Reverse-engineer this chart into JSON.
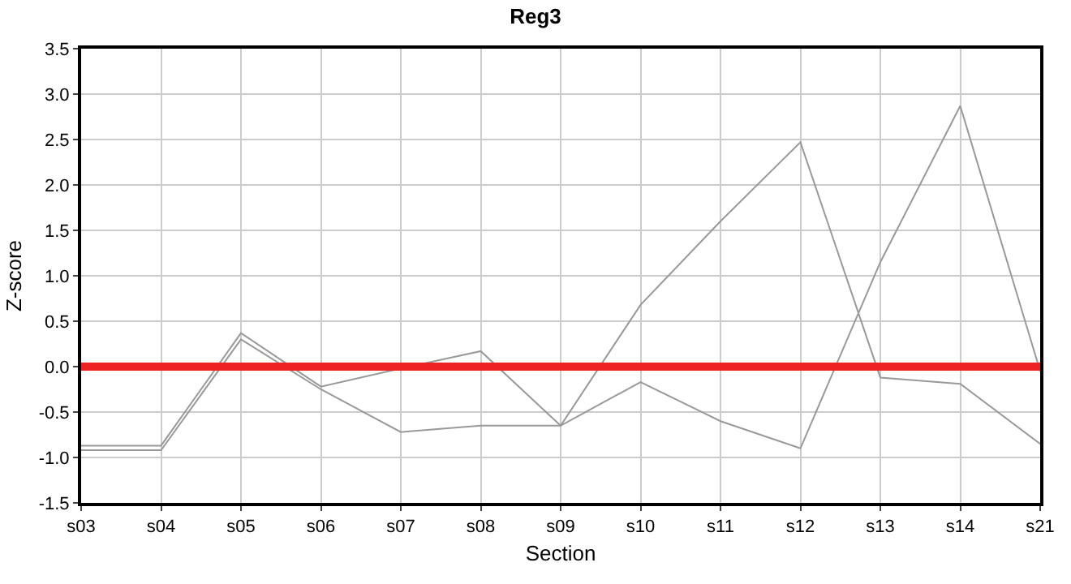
{
  "chart_data": {
    "type": "line",
    "title": "Reg3",
    "xlabel": "Section",
    "ylabel": "Z-score",
    "categories": [
      "s03",
      "s04",
      "s05",
      "s06",
      "s07",
      "s08",
      "s09",
      "s10",
      "s11",
      "s12",
      "s13",
      "s14",
      "s21"
    ],
    "series": [
      {
        "color": "#999999",
        "values": [
          -0.87,
          -0.87,
          0.37,
          -0.22,
          -0.02,
          0.17,
          -0.65,
          0.68,
          1.6,
          2.47,
          -0.12,
          -0.19,
          -0.85
        ]
      },
      {
        "color": "#999999",
        "values": [
          -0.92,
          -0.92,
          0.3,
          -0.25,
          -0.72,
          -0.65,
          -0.65,
          -0.17,
          -0.6,
          -0.9,
          1.15,
          2.87,
          -0.05
        ]
      }
    ],
    "ylim": [
      -1.5,
      3.5
    ],
    "yticks": [
      {
        "value": -1.5,
        "label": "-1.5"
      },
      {
        "value": -1,
        "label": "-1.0"
      },
      {
        "value": -0.5,
        "label": "-0.5"
      },
      {
        "value": 0,
        "label": "0.0"
      },
      {
        "value": 0.5,
        "label": "0.5"
      },
      {
        "value": 1,
        "label": "1.0"
      },
      {
        "value": 1.5,
        "label": "1.5"
      },
      {
        "value": 2,
        "label": "2.0"
      },
      {
        "value": 2.5,
        "label": "2.5"
      },
      {
        "value": 3,
        "label": "3.0"
      },
      {
        "value": 3.5,
        "label": "3.5"
      }
    ],
    "ref_lines": [
      {
        "axis": "y",
        "value": 0,
        "color": "#ee2222"
      }
    ],
    "grid": true,
    "marker": "none",
    "line_style": "solid"
  }
}
